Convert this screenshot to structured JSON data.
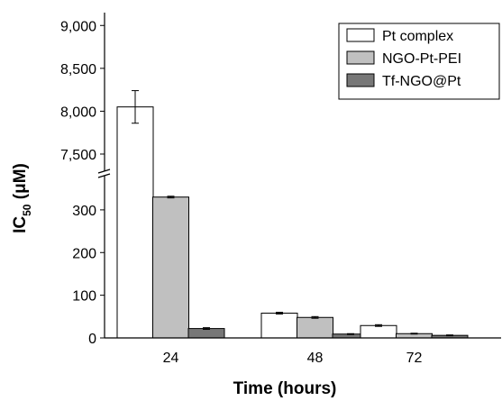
{
  "chart_data": {
    "type": "bar",
    "xlabel": "Time (hours)",
    "ylabel": "IC50 (μM)",
    "ylabel_parts": {
      "base": "IC",
      "sub": "50",
      "unit": " (μM)"
    },
    "categories": [
      "24",
      "48",
      "72"
    ],
    "series": [
      {
        "name": "Pt complex",
        "values": [
          8050,
          58,
          29
        ],
        "errors": [
          190,
          2,
          2
        ],
        "color": "#ffffff"
      },
      {
        "name": "NGO-Pt-PEI",
        "values": [
          330,
          48,
          10
        ],
        "errors": [
          2,
          2,
          1
        ],
        "color": "#c0c0c0"
      },
      {
        "name": "Tf-NGO@Pt",
        "values": [
          22,
          9,
          6
        ],
        "errors": [
          2,
          1,
          1
        ],
        "color": "#777777"
      }
    ],
    "y_axis_break": true,
    "y_lower_range": [
      0,
      380
    ],
    "y_upper_range": [
      7300,
      9150
    ],
    "y_lower_ticks": [
      "0",
      "100",
      "200",
      "300"
    ],
    "y_upper_ticks": [
      "7,500",
      "8,000",
      "8,500",
      "9,000"
    ],
    "legend_position": "top-right",
    "grid": false
  }
}
